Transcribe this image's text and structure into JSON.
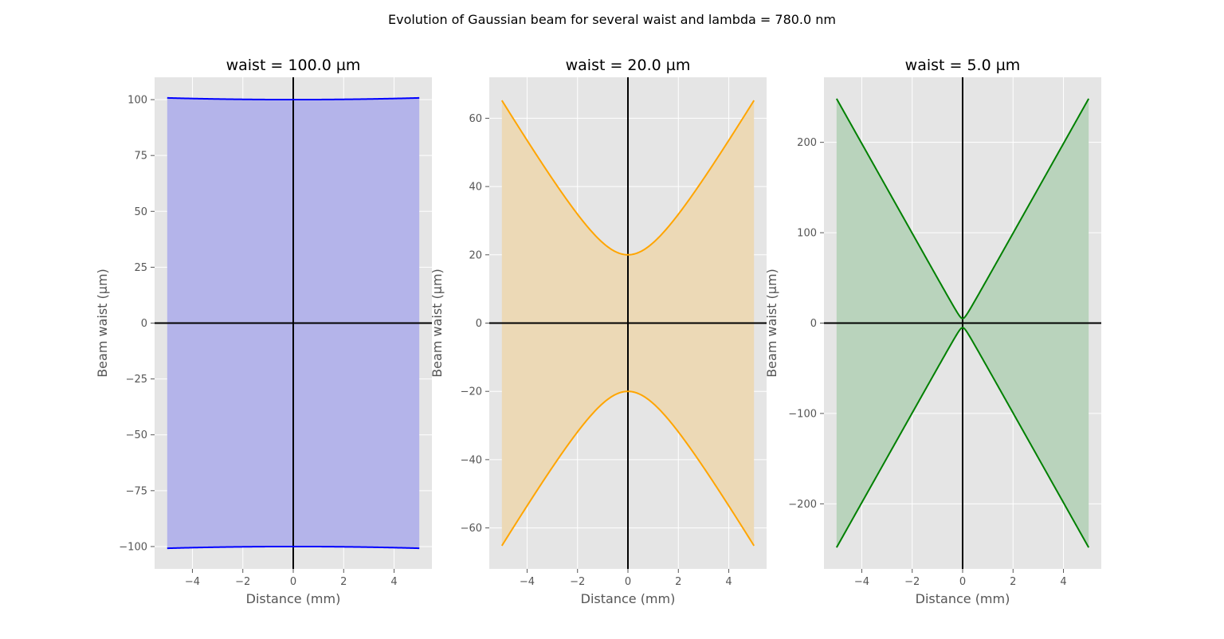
{
  "figure": {
    "suptitle": "Evolution of Gaussian beam for several waist and lambda = 780.0 nm"
  },
  "chart_data": [
    {
      "type": "area",
      "title": "waist = 100.0 µm",
      "xlabel": "Distance (mm)",
      "ylabel": "Beam waist (µm)",
      "xlim": [
        -5.5,
        5.5
      ],
      "ylim": [
        -110,
        110
      ],
      "xticks": [
        -4,
        -2,
        0,
        2,
        4
      ],
      "xtick_labels": [
        "−4",
        "−2",
        "0",
        "2",
        "4"
      ],
      "yticks": [
        -100,
        -75,
        -50,
        -25,
        0,
        25,
        50,
        75,
        100
      ],
      "ytick_labels": [
        "−100",
        "−75",
        "−50",
        "−25",
        "0",
        "25",
        "50",
        "75",
        "100"
      ],
      "grid": true,
      "waist_um": 100.0,
      "wavelength_nm": 780.0,
      "x": [
        -5,
        -4,
        -3,
        -2,
        -1,
        0,
        1,
        2,
        3,
        4,
        5
      ],
      "series": [
        {
          "values": [
            100.96,
            100.62,
            100.35,
            100.15,
            100.04,
            100.0,
            100.04,
            100.15,
            100.35,
            100.62,
            100.96
          ]
        },
        {
          "values": [
            -100.96,
            -100.62,
            -100.35,
            -100.15,
            -100.04,
            -100.0,
            -100.04,
            -100.15,
            -100.35,
            -100.62,
            -100.96
          ]
        }
      ],
      "color": "#0000ff",
      "fill_color": "#b4b4ea"
    },
    {
      "type": "area",
      "title": "waist = 20.0 µm",
      "xlabel": "Distance (mm)",
      "ylabel": "Beam waist (µm)",
      "xlim": [
        -5.5,
        5.5
      ],
      "ylim": [
        -72,
        72
      ],
      "xticks": [
        -4,
        -2,
        0,
        2,
        4
      ],
      "xtick_labels": [
        "−4",
        "−2",
        "0",
        "2",
        "4"
      ],
      "yticks": [
        -60,
        -40,
        -20,
        0,
        20,
        40,
        60
      ],
      "ytick_labels": [
        "−60",
        "−40",
        "−20",
        "0",
        "20",
        "40",
        "60"
      ],
      "grid": true,
      "waist_um": 20.0,
      "wavelength_nm": 780.0,
      "x": [
        -5,
        -4,
        -3,
        -2,
        -1,
        0,
        1,
        2,
        3,
        4,
        5
      ],
      "series": [
        {
          "values": [
            65.2,
            53.6,
            42.3,
            31.7,
            23.1,
            20.0,
            23.1,
            31.7,
            42.3,
            53.6,
            65.2
          ]
        },
        {
          "values": [
            -65.2,
            -53.6,
            -42.3,
            -31.7,
            -23.1,
            -20.0,
            -23.1,
            -31.7,
            -42.3,
            -53.6,
            -65.2
          ]
        }
      ],
      "color": "#ffa500",
      "fill_color": "#ecd9b6"
    },
    {
      "type": "area",
      "title": "waist = 5.0 µm",
      "xlabel": "Distance (mm)",
      "ylabel": "Beam waist (µm)",
      "xlim": [
        -5.5,
        5.5
      ],
      "ylim": [
        -272,
        272
      ],
      "xticks": [
        -4,
        -2,
        0,
        2,
        4
      ],
      "xtick_labels": [
        "−4",
        "−2",
        "0",
        "2",
        "4"
      ],
      "yticks": [
        -200,
        -100,
        0,
        100,
        200
      ],
      "ytick_labels": [
        "−200",
        "−100",
        "0",
        "100",
        "200"
      ],
      "grid": true,
      "waist_um": 5.0,
      "wavelength_nm": 780.0,
      "x": [
        -5,
        -4,
        -3,
        -2,
        -1,
        0,
        1,
        2,
        3,
        4,
        5
      ],
      "series": [
        {
          "values": [
            248.4,
            198.7,
            149.1,
            99.5,
            50.0,
            5.0,
            50.0,
            99.5,
            149.1,
            198.7,
            248.4
          ]
        },
        {
          "values": [
            -248.4,
            -198.7,
            -149.1,
            -99.5,
            -50.0,
            -5.0,
            -50.0,
            -99.5,
            -149.1,
            -198.7,
            -248.4
          ]
        }
      ],
      "color": "#008000",
      "fill_color": "#b9d3bc"
    }
  ]
}
